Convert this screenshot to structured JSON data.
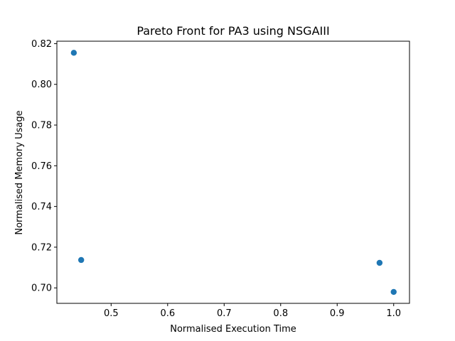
{
  "chart_data": {
    "type": "scatter",
    "title": "Pareto Front for PA3 using NSGAIII",
    "xlabel": "Normalised Execution Time",
    "ylabel": "Normalised Memory Usage",
    "xlim": [
      0.404,
      1.028
    ],
    "ylim": [
      0.6924,
      0.8212
    ],
    "x_ticks": [
      0.5,
      0.6,
      0.7,
      0.8,
      0.9,
      1.0
    ],
    "x_tick_labels": [
      "0.5",
      "0.6",
      "0.7",
      "0.8",
      "0.9",
      "1.0"
    ],
    "y_ticks": [
      0.7,
      0.72,
      0.74,
      0.76,
      0.78,
      0.8,
      0.82
    ],
    "y_tick_labels": [
      "0.70",
      "0.72",
      "0.74",
      "0.76",
      "0.78",
      "0.80",
      "0.82"
    ],
    "grid": false,
    "marker_color": "#1f77b4",
    "points": [
      {
        "x": 0.434,
        "y": 0.8155
      },
      {
        "x": 0.447,
        "y": 0.7137
      },
      {
        "x": 0.975,
        "y": 0.7123
      },
      {
        "x": 1.0,
        "y": 0.698
      }
    ]
  }
}
